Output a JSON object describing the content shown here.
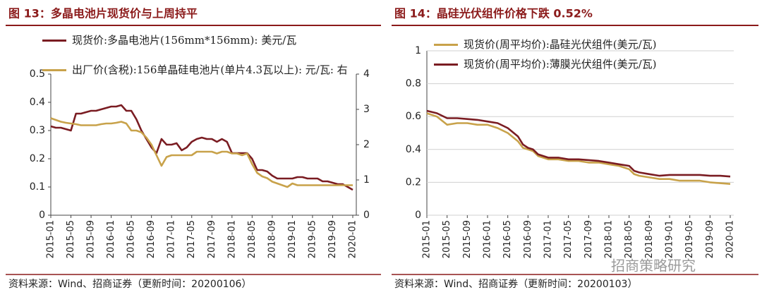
{
  "chart_data": [
    {
      "type": "line",
      "title": "图 13：多晶电池片现货价与上周持平",
      "source": "资料来源：Wind、招商证券（更新时间：20200106）",
      "x": [
        "2015-01",
        "2015-02",
        "2015-03",
        "2015-04",
        "2015-05",
        "2015-06",
        "2015-07",
        "2015-08",
        "2015-09",
        "2015-10",
        "2015-11",
        "2015-12",
        "2016-01",
        "2016-02",
        "2016-03",
        "2016-04",
        "2016-05",
        "2016-06",
        "2016-07",
        "2016-08",
        "2016-09",
        "2016-10",
        "2016-11",
        "2016-12",
        "2017-01",
        "2017-02",
        "2017-03",
        "2017-04",
        "2017-05",
        "2017-06",
        "2017-07",
        "2017-08",
        "2017-09",
        "2017-10",
        "2017-11",
        "2017-12",
        "2018-01",
        "2018-02",
        "2018-03",
        "2018-04",
        "2018-05",
        "2018-06",
        "2018-07",
        "2018-08",
        "2018-09",
        "2018-10",
        "2018-11",
        "2018-12",
        "2019-01",
        "2019-02",
        "2019-03",
        "2019-04",
        "2019-05",
        "2019-06",
        "2019-07",
        "2019-08",
        "2019-09",
        "2019-10",
        "2019-11",
        "2019-12",
        "2020-01"
      ],
      "xticks": [
        "2015-01",
        "2015-05",
        "2015-09",
        "2016-01",
        "2016-05",
        "2016-09",
        "2017-01",
        "2017-05",
        "2017-09",
        "2018-01",
        "2018-05",
        "2018-09",
        "2019-01",
        "2019-05",
        "2019-09",
        "2020-01"
      ],
      "ylim": [
        0,
        0.5
      ],
      "yticks": [
        0,
        0.1,
        0.2,
        0.3,
        0.4,
        0.5
      ],
      "y2lim": [
        0,
        4
      ],
      "y2ticks": [
        0,
        1,
        2,
        3,
        4
      ],
      "grid": false,
      "series": [
        {
          "name": "现货价:多晶电池片(156mm*156mm): 美元/瓦",
          "color": "#7a1c22",
          "values": [
            0.315,
            0.31,
            0.31,
            0.305,
            0.3,
            0.36,
            0.36,
            0.365,
            0.37,
            0.37,
            0.375,
            0.38,
            0.385,
            0.385,
            0.39,
            0.37,
            0.37,
            0.34,
            0.3,
            0.27,
            0.24,
            0.22,
            0.27,
            0.25,
            0.25,
            0.255,
            0.23,
            0.24,
            0.26,
            0.27,
            0.275,
            0.27,
            0.27,
            0.26,
            0.27,
            0.26,
            0.22,
            0.22,
            0.22,
            0.22,
            0.2,
            0.16,
            0.16,
            0.155,
            0.14,
            0.13,
            0.13,
            0.13,
            0.13,
            0.135,
            0.135,
            0.13,
            0.13,
            0.13,
            0.12,
            0.12,
            0.115,
            0.11,
            0.11,
            0.1,
            0.09
          ]
        },
        {
          "name": "出厂价(含税):156单晶硅电池片(单片4.3瓦以上): 元/瓦: 右",
          "color": "#c8a24a",
          "axis": "y2",
          "values": [
            2.75,
            2.7,
            2.65,
            2.62,
            2.6,
            2.58,
            2.55,
            2.55,
            2.55,
            2.55,
            2.58,
            2.6,
            2.6,
            2.62,
            2.65,
            2.6,
            2.4,
            2.4,
            2.35,
            2.2,
            2.0,
            1.7,
            1.4,
            1.65,
            1.7,
            1.7,
            1.7,
            1.7,
            1.7,
            1.8,
            1.8,
            1.8,
            1.8,
            1.75,
            1.8,
            1.8,
            1.75,
            1.75,
            1.7,
            1.75,
            1.45,
            1.2,
            1.1,
            1.05,
            0.95,
            0.9,
            0.85,
            0.8,
            0.9,
            0.85,
            0.85,
            0.85,
            0.85,
            0.85,
            0.85,
            0.85,
            0.85,
            0.85,
            0.85,
            0.85,
            0.85
          ]
        }
      ]
    },
    {
      "type": "line",
      "title": "图 14：晶硅光伏组件价格下跌 0.52%",
      "source": "资料来源：Wind、招商证券（更新时间：20200103）",
      "x": [
        "2015-01",
        "2015-03",
        "2015-05",
        "2015-07",
        "2015-09",
        "2015-11",
        "2016-01",
        "2016-03",
        "2016-05",
        "2016-07",
        "2016-08",
        "2016-09",
        "2016-10",
        "2016-11",
        "2017-01",
        "2017-03",
        "2017-05",
        "2017-07",
        "2017-09",
        "2017-11",
        "2018-01",
        "2018-03",
        "2018-05",
        "2018-06",
        "2018-07",
        "2018-09",
        "2018-11",
        "2019-01",
        "2019-03",
        "2019-05",
        "2019-07",
        "2019-09",
        "2019-11",
        "2020-01"
      ],
      "xticks": [
        "2015-01",
        "2015-05",
        "2015-09",
        "2016-01",
        "2016-05",
        "2016-09",
        "2017-01",
        "2017-05",
        "2017-09",
        "2018-01",
        "2018-05",
        "2018-09",
        "2019-01",
        "2019-05",
        "2019-09",
        "2020-01"
      ],
      "ylim": [
        0,
        1
      ],
      "yticks": [
        0,
        0.2,
        0.4,
        0.6,
        0.8,
        1
      ],
      "grid": true,
      "series": [
        {
          "name": "现货价(周平均价):晶硅光伏组件(美元/瓦)",
          "color": "#c8a24a",
          "values": [
            0.62,
            0.6,
            0.55,
            0.56,
            0.56,
            0.55,
            0.55,
            0.53,
            0.5,
            0.45,
            0.41,
            0.4,
            0.39,
            0.36,
            0.34,
            0.34,
            0.33,
            0.33,
            0.32,
            0.32,
            0.31,
            0.3,
            0.28,
            0.25,
            0.24,
            0.23,
            0.22,
            0.22,
            0.21,
            0.21,
            0.21,
            0.2,
            0.195,
            0.19
          ]
        },
        {
          "name": "现货价(周平均价):薄膜光伏组件(美元/瓦)",
          "color": "#7a1c22",
          "values": [
            0.635,
            0.62,
            0.59,
            0.59,
            0.585,
            0.58,
            0.57,
            0.56,
            0.53,
            0.48,
            0.43,
            0.41,
            0.4,
            0.37,
            0.35,
            0.35,
            0.34,
            0.34,
            0.335,
            0.33,
            0.32,
            0.31,
            0.3,
            0.27,
            0.26,
            0.25,
            0.24,
            0.245,
            0.245,
            0.245,
            0.245,
            0.24,
            0.24,
            0.235
          ]
        }
      ]
    }
  ],
  "watermark": "招商策略研究"
}
